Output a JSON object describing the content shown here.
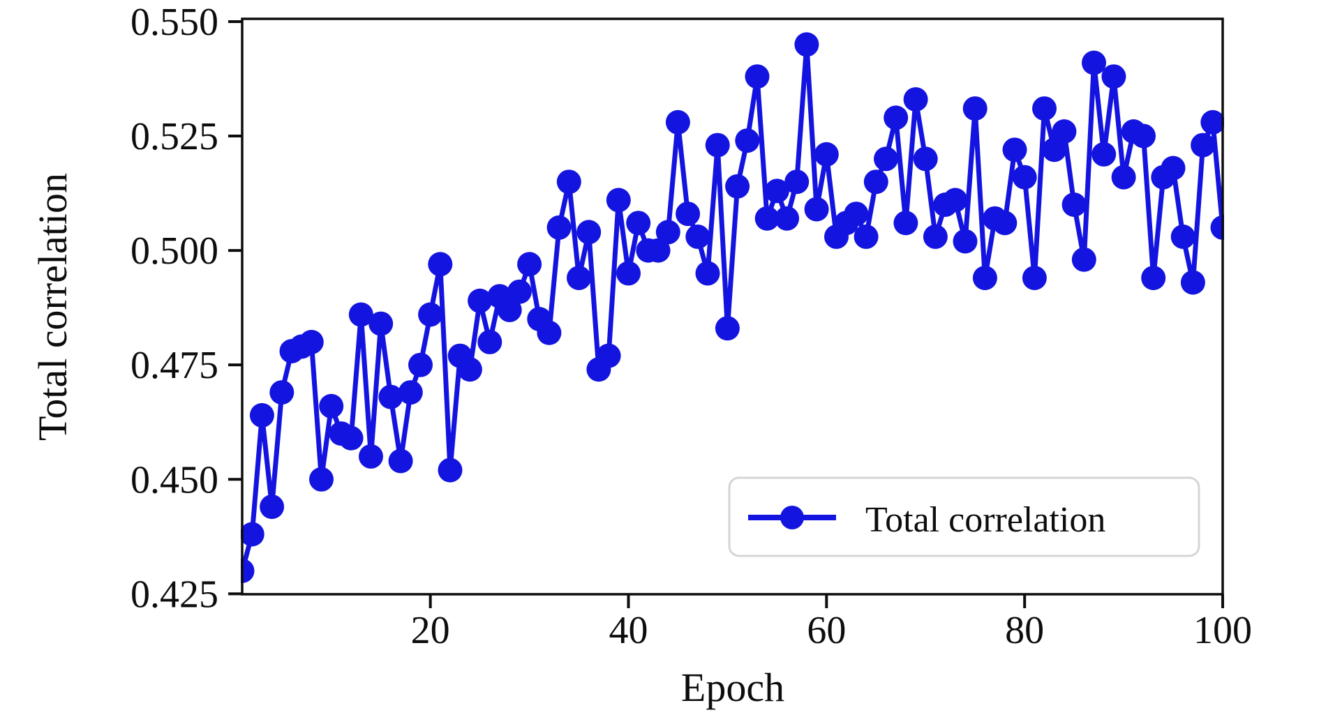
{
  "chart_data": {
    "type": "line",
    "title": "",
    "xlabel": "Epoch",
    "ylabel": "Total correlation",
    "legend": {
      "label": "Total correlation",
      "position": "lower right"
    },
    "marker": "circle",
    "grid": false,
    "line_color": "#1414e0",
    "axis_color": "#0d0d0d",
    "xlim": [
      1,
      100
    ],
    "ylim": [
      0.4249,
      0.5506
    ],
    "xticks": [
      20,
      40,
      60,
      80,
      100
    ],
    "yticks": [
      "0.425",
      "0.450",
      "0.475",
      "0.500",
      "0.525",
      "0.550"
    ],
    "ytick_values": [
      0.425,
      0.45,
      0.475,
      0.5,
      0.525,
      0.55
    ],
    "x_start": 1,
    "x_step": 1,
    "series": [
      {
        "name": "Total correlation",
        "values": [
          0.43,
          0.438,
          0.464,
          0.444,
          0.469,
          0.478,
          0.479,
          0.48,
          0.45,
          0.466,
          0.46,
          0.459,
          0.486,
          0.455,
          0.484,
          0.468,
          0.454,
          0.469,
          0.475,
          0.486,
          0.497,
          0.452,
          0.477,
          0.474,
          0.489,
          0.48,
          0.49,
          0.487,
          0.491,
          0.497,
          0.485,
          0.482,
          0.505,
          0.515,
          0.494,
          0.504,
          0.474,
          0.477,
          0.511,
          0.495,
          0.506,
          0.5,
          0.5,
          0.504,
          0.528,
          0.508,
          0.503,
          0.495,
          0.523,
          0.483,
          0.514,
          0.524,
          0.538,
          0.507,
          0.513,
          0.507,
          0.515,
          0.545,
          0.509,
          0.521,
          0.503,
          0.506,
          0.508,
          0.503,
          0.515,
          0.52,
          0.529,
          0.506,
          0.533,
          0.52,
          0.503,
          0.51,
          0.511,
          0.502,
          0.531,
          0.494,
          0.507,
          0.506,
          0.522,
          0.516,
          0.494,
          0.531,
          0.522,
          0.526,
          0.51,
          0.498,
          0.541,
          0.521,
          0.538,
          0.516,
          0.526,
          0.525,
          0.494,
          0.516,
          0.518,
          0.503,
          0.493,
          0.523,
          0.528,
          0.505
        ]
      }
    ]
  }
}
